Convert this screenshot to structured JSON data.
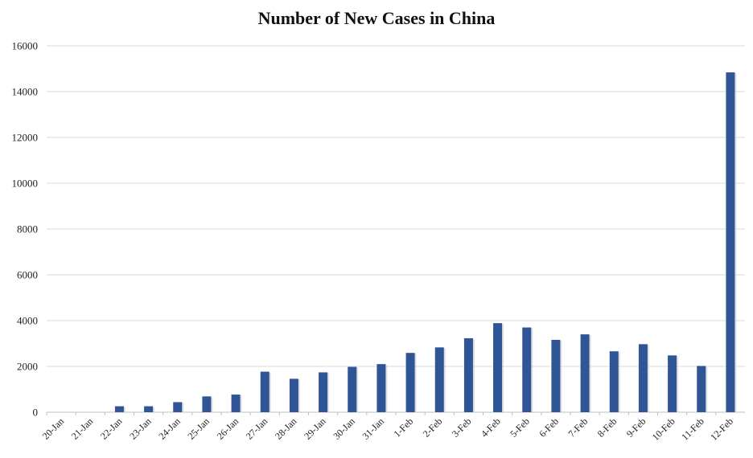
{
  "chart_data": {
    "type": "bar",
    "title": "Number of New Cases in China",
    "xlabel": "",
    "ylabel": "",
    "ylim": [
      0,
      16000
    ],
    "yticks": [
      "0",
      "2000",
      "4000",
      "6000",
      "8000",
      "10000",
      "12000",
      "14000",
      "16000"
    ],
    "grid": true,
    "legend": "none",
    "categories": [
      "20-Jan",
      "21-Jan",
      "22-Jan",
      "23-Jan",
      "24-Jan",
      "25-Jan",
      "26-Jan",
      "27-Jan",
      "28-Jan",
      "29-Jan",
      "30-Jan",
      "31-Jan",
      "1-Feb",
      "2-Feb",
      "3-Feb",
      "4-Feb",
      "5-Feb",
      "6-Feb",
      "7-Feb",
      "8-Feb",
      "9-Feb",
      "10-Feb",
      "11-Feb",
      "12-Feb"
    ],
    "values": [
      0,
      0,
      260,
      260,
      440,
      690,
      770,
      1770,
      1460,
      1740,
      1980,
      2100,
      2590,
      2830,
      3230,
      3890,
      3700,
      3160,
      3400,
      2660,
      2970,
      2480,
      2020,
      14840
    ],
    "colors": {
      "bar": "#2f5597",
      "grid": "#d9d9d9",
      "axis": "#bfbfbf"
    }
  }
}
